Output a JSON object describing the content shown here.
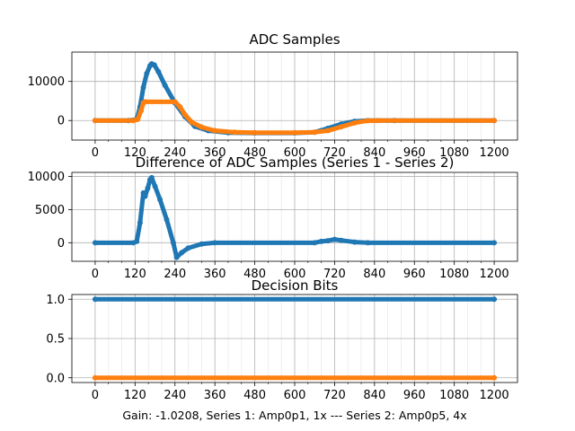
{
  "chart_data": [
    {
      "type": "scatter",
      "title": "ADC Samples",
      "xlim": [
        -70,
        1270
      ],
      "ylim": [
        -5000,
        17500
      ],
      "xticks": [
        0,
        120,
        240,
        360,
        480,
        600,
        720,
        840,
        960,
        1080,
        1200
      ],
      "xtick_labels": [
        "0",
        "120",
        "240",
        "360",
        "480",
        "600",
        "720",
        "840",
        "960",
        "1080",
        "1200"
      ],
      "yticks": [
        0,
        10000
      ],
      "ytick_labels": [
        "0",
        "10000"
      ],
      "grid": true,
      "series": [
        {
          "name": "Series 1",
          "color": "#1f77b4",
          "points": [
            [
              0,
              0
            ],
            [
              100,
              0
            ],
            [
              125,
              300
            ],
            [
              135,
              3500
            ],
            [
              145,
              8500
            ],
            [
              155,
              12000
            ],
            [
              165,
              14000
            ],
            [
              170,
              14500
            ],
            [
              178,
              14200
            ],
            [
              190,
              12500
            ],
            [
              210,
              9000
            ],
            [
              240,
              4500
            ],
            [
              270,
              1000
            ],
            [
              300,
              -1500
            ],
            [
              340,
              -2600
            ],
            [
              400,
              -3100
            ],
            [
              480,
              -3200
            ],
            [
              600,
              -3200
            ],
            [
              660,
              -3000
            ],
            [
              700,
              -2000
            ],
            [
              740,
              -900
            ],
            [
              780,
              -200
            ],
            [
              820,
              0
            ],
            [
              900,
              0
            ],
            [
              1200,
              0
            ]
          ]
        },
        {
          "name": "Series 2",
          "color": "#ff7f0e",
          "points": [
            [
              0,
              0
            ],
            [
              115,
              0
            ],
            [
              128,
              300
            ],
            [
              138,
              2500
            ],
            [
              145,
              4500
            ],
            [
              150,
              4800
            ],
            [
              240,
              4800
            ],
            [
              255,
              3500
            ],
            [
              270,
              1500
            ],
            [
              290,
              -400
            ],
            [
              320,
              -1700
            ],
            [
              360,
              -2600
            ],
            [
              420,
              -3000
            ],
            [
              480,
              -3100
            ],
            [
              600,
              -3100
            ],
            [
              660,
              -3000
            ],
            [
              700,
              -2600
            ],
            [
              740,
              -1600
            ],
            [
              780,
              -600
            ],
            [
              820,
              -50
            ],
            [
              850,
              0
            ],
            [
              1200,
              0
            ]
          ]
        }
      ]
    },
    {
      "type": "scatter",
      "title": "Difference of ADC Samples (Series 1 - Series 2)",
      "xlim": [
        -70,
        1270
      ],
      "ylim": [
        -2800,
        10600
      ],
      "xticks": [
        0,
        120,
        240,
        360,
        480,
        600,
        720,
        840,
        960,
        1080,
        1200
      ],
      "xtick_labels": [
        "0",
        "120",
        "240",
        "360",
        "480",
        "600",
        "720",
        "840",
        "960",
        "1080",
        "1200"
      ],
      "yticks": [
        0,
        5000,
        10000
      ],
      "ytick_labels": [
        "0",
        "5000",
        "10000"
      ],
      "grid": true,
      "series": [
        {
          "name": "Series 1 - Series 2",
          "color": "#1f77b4",
          "points": [
            [
              0,
              0
            ],
            [
              115,
              0
            ],
            [
              125,
              200
            ],
            [
              135,
              3000
            ],
            [
              145,
              7500
            ],
            [
              150,
              7000
            ],
            [
              158,
              8200
            ],
            [
              165,
              9500
            ],
            [
              170,
              9800
            ],
            [
              180,
              8500
            ],
            [
              195,
              6500
            ],
            [
              215,
              3500
            ],
            [
              235,
              0
            ],
            [
              245,
              -2200
            ],
            [
              260,
              -1500
            ],
            [
              280,
              -800
            ],
            [
              320,
              -200
            ],
            [
              360,
              0
            ],
            [
              660,
              0
            ],
            [
              680,
              200
            ],
            [
              700,
              300
            ],
            [
              720,
              500
            ],
            [
              740,
              350
            ],
            [
              780,
              100
            ],
            [
              820,
              0
            ],
            [
              1200,
              0
            ]
          ]
        }
      ]
    },
    {
      "type": "scatter",
      "title": "Decision Bits",
      "xlabel": "Gain: -1.0208, Series 1: Amp0p1, 1x --- Series 2: Amp0p5, 4x",
      "xlim": [
        -70,
        1270
      ],
      "ylim": [
        -0.06,
        1.06
      ],
      "xticks": [
        0,
        120,
        240,
        360,
        480,
        600,
        720,
        840,
        960,
        1080,
        1200
      ],
      "xtick_labels": [
        "0",
        "120",
        "240",
        "360",
        "480",
        "600",
        "720",
        "840",
        "960",
        "1080",
        "1200"
      ],
      "yticks": [
        0.0,
        0.5,
        1.0
      ],
      "ytick_labels": [
        "0.0",
        "0.5",
        "1.0"
      ],
      "grid": true,
      "series": [
        {
          "name": "Series 1",
          "color": "#1f77b4",
          "points": [
            [
              0,
              1
            ],
            [
              1200,
              1
            ]
          ]
        },
        {
          "name": "Series 2",
          "color": "#ff7f0e",
          "points": [
            [
              0,
              0
            ],
            [
              1200,
              0
            ]
          ]
        }
      ]
    }
  ]
}
